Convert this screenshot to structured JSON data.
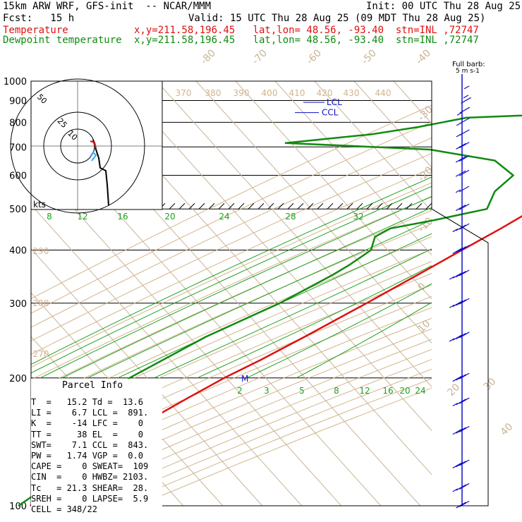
{
  "header": {
    "model": "15km ARW WRF, GFS-init  -- NCAR/MMM",
    "init": "Init: 00 UTC Thu 28 Aug 25",
    "fcst": "Fcst:   15 h",
    "valid": "Valid: 15 UTC Thu 28 Aug 25 (09 MDT Thu 28 Aug 25)",
    "temp_label": "Temperature",
    "temp_info": "x,y=211.58,196.45   lat,lon= 48.56, -93.40  stn=INL ,72747",
    "dew_label": "Dewpoint temperature",
    "dew_info": "x,y=211.58,196.45   lat,lon= 48.56, -93.40  stn=INL ,72747"
  },
  "barb_legend": {
    "title": "Full barb:",
    "unit": "5 m s-1"
  },
  "hodograph": {
    "unit": "kts",
    "rings": [
      "50",
      "25",
      "10"
    ]
  },
  "parcel": {
    "title": "Parcel Info",
    "rows": [
      "T  =   15.2 Td =  13.6",
      "LI =    6.7 LCL =  891.",
      "K  =    -14 LFC =    0",
      "TT =     38 EL  =    0",
      "SWT=    7.1 CCL =  843.",
      "PW =   1.74 VGP =  0.0",
      "CAPE =    0 SWEAT=  109",
      "CIN  =    0 HWBZ= 2103.",
      "Tc   = 21.3 SHEAR=  28.",
      "SREH =    0 LAPSE=  5.9",
      "CELL = 348/22"
    ]
  },
  "markers": {
    "ccl": "CCL",
    "lcl": "LCL",
    "m": "M"
  },
  "colors": {
    "temperature": "#e01010",
    "dewpoint": "#108a10",
    "wind": "#1010c8",
    "isotherm": "#c8b496",
    "adiabat": "#d2b48c"
  },
  "chart_data": {
    "type": "line",
    "diagram": "skew-T log-p",
    "y_axis": {
      "ticks": [
        100,
        200,
        300,
        400,
        500,
        600,
        700,
        800,
        900,
        1000
      ],
      "scale": "log",
      "unit": "hPa"
    },
    "isotherm_labels": [
      "-80",
      "-70",
      "-60",
      "-50",
      "-40",
      "-30",
      "-20",
      "-10",
      "0",
      "10",
      "20",
      "30",
      "40"
    ],
    "theta_labels_top": [
      "370",
      "380",
      "390",
      "400",
      "410",
      "420",
      "430",
      "440"
    ],
    "theta_labels_left": [
      "290",
      "280",
      "270"
    ],
    "mixing_ratio_labels_upper": [
      "8",
      "12",
      "16",
      "20",
      "24",
      "28",
      "32"
    ],
    "mixing_ratio_labels_lower": [
      "2",
      "3",
      "5",
      "8",
      "12",
      "16",
      "20",
      "24"
    ],
    "series": [
      {
        "name": "Temperature",
        "points": [
          [
            925,
            15.2
          ],
          [
            900,
            16.5
          ],
          [
            880,
            19.0
          ],
          [
            850,
            17.5
          ],
          [
            820,
            16.0
          ],
          [
            800,
            15.5
          ],
          [
            750,
            14.0
          ],
          [
            700,
            11.5
          ],
          [
            650,
            8.5
          ],
          [
            600,
            5.5
          ],
          [
            550,
            2.0
          ],
          [
            500,
            -2.0
          ],
          [
            450,
            -6.0
          ],
          [
            400,
            -11.0
          ],
          [
            350,
            -16.5
          ],
          [
            300,
            -23.0
          ],
          [
            250,
            -31.0
          ],
          [
            220,
            -37.0
          ],
          [
            200,
            -42.0
          ],
          [
            180,
            -46.5
          ],
          [
            165,
            -50.0
          ],
          [
            150,
            -52.0
          ],
          [
            140,
            -53.0
          ],
          [
            125,
            -55.0
          ],
          [
            112,
            -58.0
          ],
          [
            100,
            -62.0
          ]
        ]
      },
      {
        "name": "Dewpoint temperature",
        "points": [
          [
            925,
            13.6
          ],
          [
            900,
            10.0
          ],
          [
            880,
            4.0
          ],
          [
            850,
            0.0
          ],
          [
            820,
            -40.0
          ],
          [
            780,
            -50.0
          ],
          [
            750,
            -60.0
          ],
          [
            715,
            -80.0
          ],
          [
            690,
            -42.0
          ],
          [
            650,
            -23.0
          ],
          [
            600,
            -15.0
          ],
          [
            550,
            -16.0
          ],
          [
            500,
            -14.0
          ],
          [
            470,
            -25.0
          ],
          [
            450,
            -34.0
          ],
          [
            430,
            -36.0
          ],
          [
            400,
            -34.0
          ],
          [
            370,
            -36.0
          ],
          [
            350,
            -38.0
          ],
          [
            300,
            -45.0
          ],
          [
            250,
            -56.0
          ],
          [
            200,
            -66.0
          ],
          [
            180,
            -66.0
          ],
          [
            165,
            -65.0
          ],
          [
            150,
            -63.0
          ],
          [
            140,
            -62.0
          ],
          [
            125,
            -60.0
          ],
          [
            112,
            -62.0
          ],
          [
            100,
            -65.0
          ]
        ]
      }
    ],
    "winds": [
      [
        950,
        5,
        50
      ],
      [
        925,
        8,
        150
      ],
      [
        900,
        10,
        200
      ],
      [
        850,
        15,
        230
      ],
      [
        800,
        18,
        240
      ],
      [
        750,
        18,
        245
      ],
      [
        700,
        22,
        250
      ],
      [
        650,
        20,
        255
      ],
      [
        600,
        20,
        260
      ],
      [
        550,
        18,
        260
      ],
      [
        500,
        22,
        255
      ],
      [
        450,
        25,
        250
      ],
      [
        400,
        30,
        250
      ],
      [
        350,
        35,
        250
      ],
      [
        300,
        35,
        250
      ],
      [
        250,
        35,
        250
      ],
      [
        200,
        30,
        250
      ],
      [
        175,
        28,
        250
      ],
      [
        150,
        30,
        250
      ],
      [
        125,
        30,
        250
      ],
      [
        110,
        25,
        250
      ],
      [
        100,
        20,
        250
      ]
    ]
  }
}
